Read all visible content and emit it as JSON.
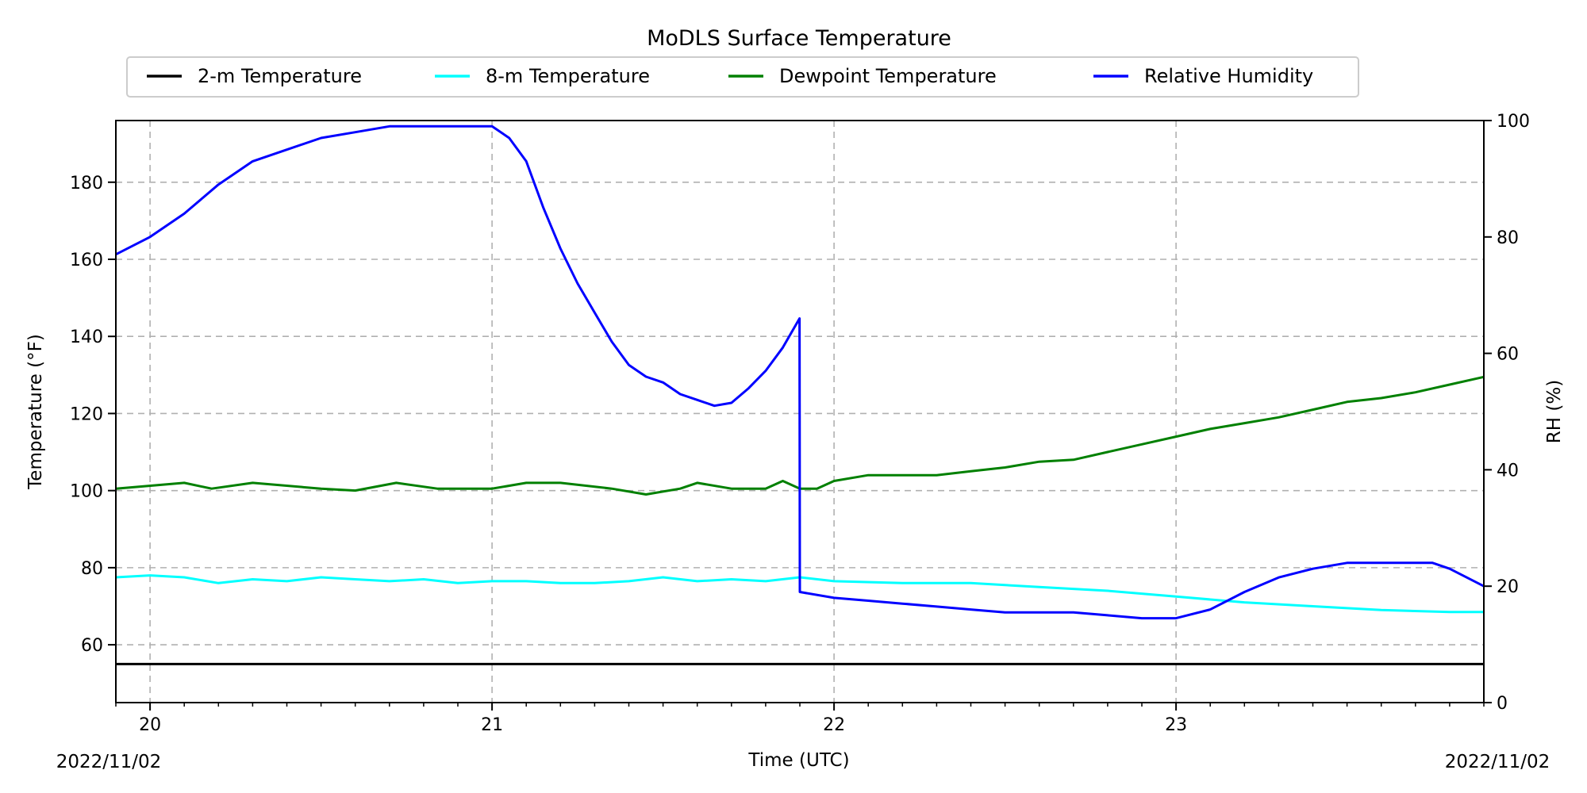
{
  "chart_data": {
    "type": "line",
    "title": "MoDLS Surface Temperature",
    "xlabel": "Time (UTC)",
    "ylabel_left": "Temperature (°F)",
    "ylabel_right": "RH (%)",
    "date_left": "2022/11/02",
    "date_right": "2022/11/02",
    "xlim": [
      19.9,
      23.9
    ],
    "ylim_left": [
      45,
      196
    ],
    "ylim_right": [
      0,
      100
    ],
    "x_ticks": [
      {
        "value": 20,
        "label": "20"
      },
      {
        "value": 21,
        "label": "21"
      },
      {
        "value": 22,
        "label": "22"
      },
      {
        "value": 23,
        "label": "23"
      }
    ],
    "y_ticks_left": [
      {
        "value": 60,
        "label": "60"
      },
      {
        "value": 80,
        "label": "80"
      },
      {
        "value": 100,
        "label": "100"
      },
      {
        "value": 120,
        "label": "120"
      },
      {
        "value": 140,
        "label": "140"
      },
      {
        "value": 160,
        "label": "160"
      },
      {
        "value": 180,
        "label": "180"
      }
    ],
    "y_ticks_right": [
      {
        "value": 0,
        "label": "0"
      },
      {
        "value": 20,
        "label": "20"
      },
      {
        "value": 40,
        "label": "40"
      },
      {
        "value": 60,
        "label": "60"
      },
      {
        "value": 80,
        "label": "80"
      },
      {
        "value": 100,
        "label": "100"
      }
    ],
    "grid": true,
    "legend_position": "top-center",
    "series": [
      {
        "name": "2-m Temperature",
        "axis": "left",
        "color": "#000000",
        "x": [
          19.9,
          20.5,
          21.0,
          21.5,
          22.0,
          22.5,
          23.0,
          23.5,
          23.9
        ],
        "y": [
          55,
          55,
          55,
          55,
          55,
          55,
          55,
          55,
          55
        ]
      },
      {
        "name": "8-m Temperature",
        "axis": "left",
        "color": "#00ffff",
        "x": [
          19.9,
          20.0,
          20.1,
          20.2,
          20.3,
          20.4,
          20.5,
          20.6,
          20.7,
          20.8,
          20.9,
          21.0,
          21.1,
          21.2,
          21.3,
          21.4,
          21.5,
          21.6,
          21.7,
          21.8,
          21.9,
          22.0,
          22.2,
          22.4,
          22.6,
          22.8,
          23.0,
          23.2,
          23.4,
          23.6,
          23.8,
          23.9
        ],
        "y": [
          77.5,
          78,
          77.5,
          76,
          77,
          76.5,
          77.5,
          77,
          76.5,
          77,
          76,
          76.5,
          76.5,
          76,
          76,
          76.5,
          77.5,
          76.5,
          77,
          76.5,
          77.5,
          76.5,
          76,
          76,
          75,
          74,
          72.5,
          71,
          70,
          69,
          68.5,
          68.5
        ]
      },
      {
        "name": "Dewpoint Temperature",
        "axis": "left",
        "color": "#008000",
        "x": [
          19.9,
          20.1,
          20.18,
          20.3,
          20.5,
          20.6,
          20.72,
          20.84,
          21.0,
          21.1,
          21.2,
          21.35,
          21.45,
          21.55,
          21.6,
          21.7,
          21.8,
          21.85,
          21.9,
          21.95,
          22.0,
          22.1,
          22.2,
          22.3,
          22.4,
          22.5,
          22.6,
          22.7,
          22.8,
          22.9,
          23.0,
          23.1,
          23.2,
          23.3,
          23.4,
          23.5,
          23.6,
          23.7,
          23.8,
          23.9
        ],
        "y": [
          100.5,
          102,
          100.5,
          102,
          100.5,
          100,
          102,
          100.5,
          100.5,
          102,
          102,
          100.5,
          99,
          100.5,
          102,
          100.5,
          100.5,
          102.5,
          100.5,
          100.5,
          102.5,
          104,
          104,
          104,
          105,
          106,
          107.5,
          108,
          110,
          112,
          114,
          116,
          117.5,
          119,
          121,
          123,
          124,
          125.5,
          127.5,
          129.5
        ]
      },
      {
        "name": "Relative Humidity",
        "axis": "right",
        "color": "#0000ff",
        "x": [
          19.9,
          20.0,
          20.1,
          20.2,
          20.3,
          20.4,
          20.5,
          20.6,
          20.7,
          20.8,
          20.9,
          21.0,
          21.05,
          21.1,
          21.15,
          21.2,
          21.25,
          21.3,
          21.35,
          21.4,
          21.45,
          21.5,
          21.55,
          21.6,
          21.65,
          21.7,
          21.75,
          21.8,
          21.85,
          21.899,
          21.9,
          22.0,
          22.1,
          22.2,
          22.3,
          22.4,
          22.5,
          22.6,
          22.7,
          22.8,
          22.9,
          23.0,
          23.1,
          23.2,
          23.3,
          23.4,
          23.5,
          23.6,
          23.7,
          23.75,
          23.8,
          23.85,
          23.9
        ],
        "y": [
          77,
          80,
          84,
          89,
          93,
          95,
          97,
          98,
          99,
          99,
          99,
          99,
          97,
          93,
          85,
          78,
          72,
          67,
          62,
          58,
          56,
          55,
          53,
          52,
          51,
          51.5,
          54,
          57,
          61,
          66,
          19,
          18,
          17.5,
          17,
          16.5,
          16,
          15.5,
          15.5,
          15.5,
          15,
          14.5,
          14.5,
          16,
          19,
          21.5,
          23,
          24,
          24,
          24,
          24,
          23,
          21.5,
          20
        ]
      }
    ]
  }
}
